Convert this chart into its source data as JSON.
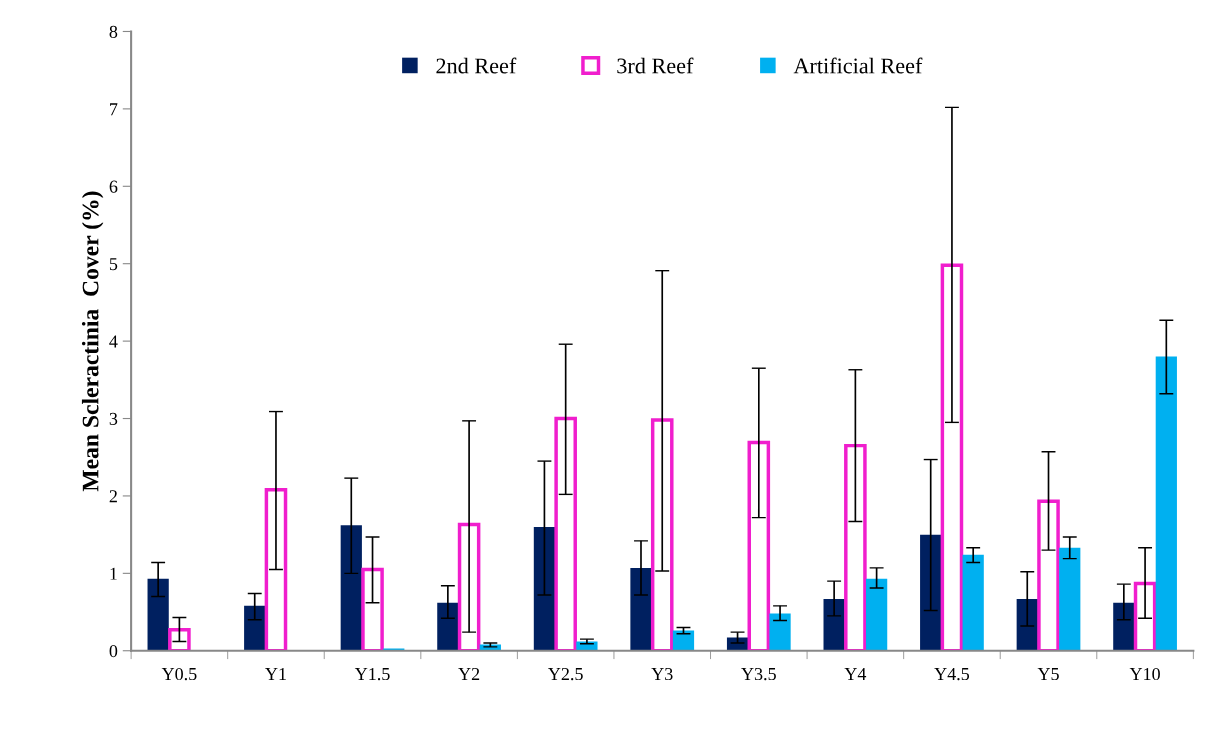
{
  "chart_data": {
    "type": "bar",
    "ylabel": "Mean Scleractinia  Cover (%)",
    "categories": [
      "Y0.5",
      "Y1",
      "Y1.5",
      "Y2",
      "Y2.5",
      "Y3",
      "Y3.5",
      "Y4",
      "Y4.5",
      "Y5",
      "Y10"
    ],
    "series": [
      {
        "name": "2nd Reef",
        "color": "#002060",
        "values": [
          0.93,
          0.58,
          1.62,
          0.62,
          1.6,
          1.07,
          0.17,
          0.67,
          1.5,
          0.67,
          0.62
        ],
        "errors": [
          [
            0.7,
            1.14
          ],
          [
            0.4,
            0.74
          ],
          [
            1.0,
            2.23
          ],
          [
            0.42,
            0.84
          ],
          [
            0.72,
            2.45
          ],
          [
            0.72,
            1.42
          ],
          [
            0.1,
            0.24
          ],
          [
            0.45,
            0.9
          ],
          [
            0.52,
            2.47
          ],
          [
            0.32,
            1.02
          ],
          [
            0.4,
            0.86
          ]
        ]
      },
      {
        "name": "3rd Reef",
        "color": "#f01ecd",
        "values": [
          0.27,
          2.08,
          1.05,
          1.63,
          3.0,
          2.98,
          2.69,
          2.65,
          4.98,
          1.93,
          0.87
        ],
        "errors": [
          [
            0.12,
            0.43
          ],
          [
            1.05,
            3.09
          ],
          [
            0.62,
            1.47
          ],
          [
            0.24,
            2.97
          ],
          [
            2.02,
            3.96
          ],
          [
            1.03,
            4.91
          ],
          [
            1.72,
            3.65
          ],
          [
            1.67,
            3.63
          ],
          [
            2.95,
            7.02
          ],
          [
            1.3,
            2.57
          ],
          [
            0.42,
            1.33
          ]
        ]
      },
      {
        "name": "Artificial Reef",
        "color": "#00b0f0",
        "values": [
          0.0,
          0.0,
          0.03,
          0.08,
          0.12,
          0.26,
          0.48,
          0.93,
          1.24,
          1.33,
          3.8
        ],
        "errors": [
          null,
          null,
          null,
          [
            0.05,
            0.1
          ],
          [
            0.09,
            0.15
          ],
          [
            0.22,
            0.3
          ],
          [
            0.39,
            0.58
          ],
          [
            0.81,
            1.07
          ],
          [
            1.14,
            1.33
          ],
          [
            1.19,
            1.47
          ],
          [
            3.32,
            4.27
          ]
        ]
      }
    ],
    "ylim": [
      0,
      8
    ],
    "yticks": [
      0,
      1,
      2,
      3,
      4,
      5,
      6,
      7,
      8
    ],
    "grid": false,
    "legend": "top"
  }
}
